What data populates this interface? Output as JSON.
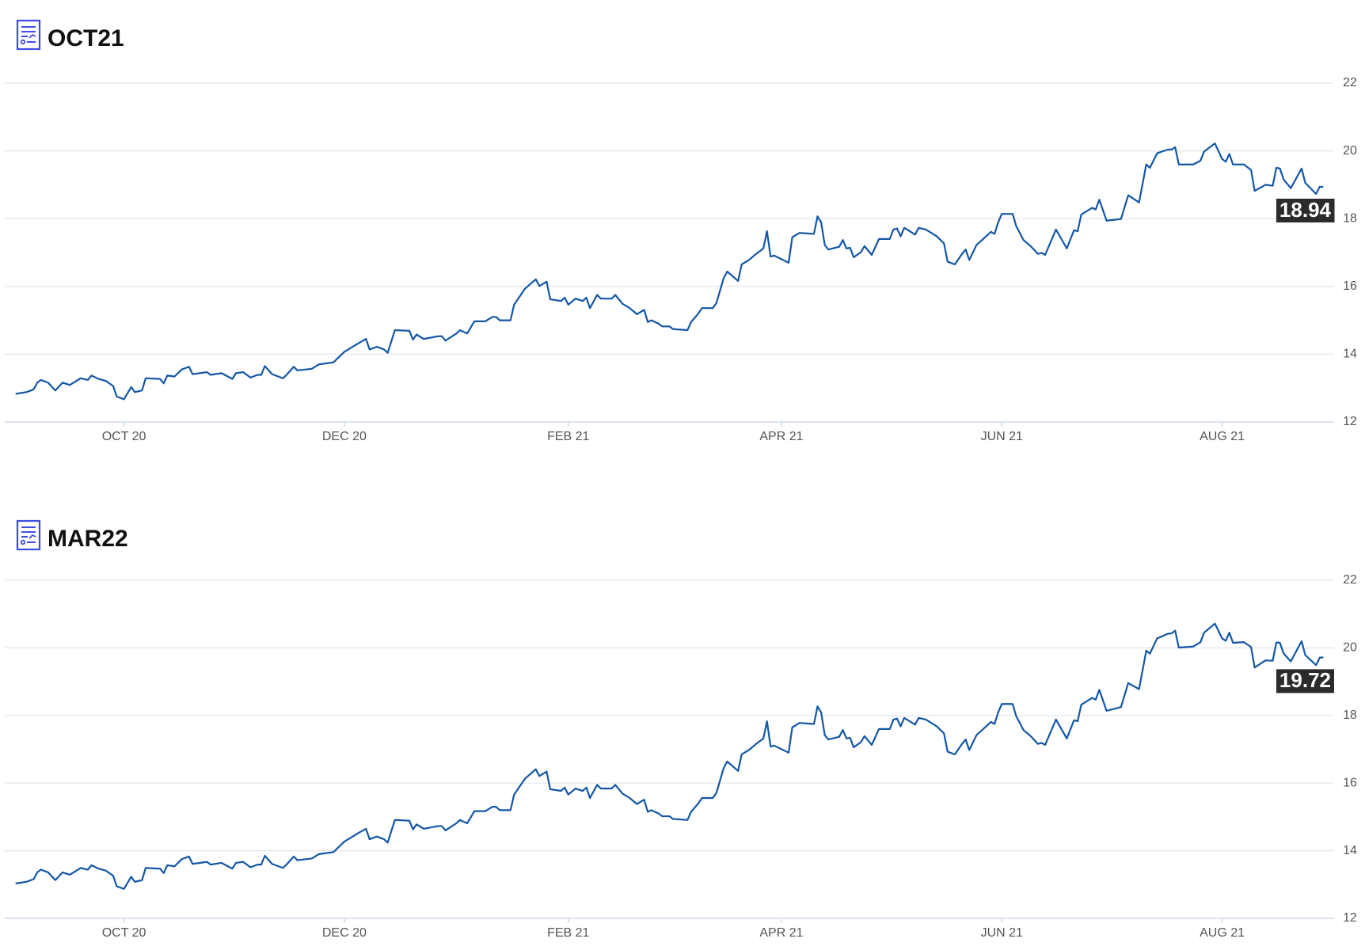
{
  "chart_data": [
    {
      "type": "line",
      "title": "OCT21",
      "color": "#1357a6",
      "grid": true,
      "x": [
        0,
        3,
        5,
        6,
        7,
        9,
        11,
        13,
        15,
        18,
        20,
        21,
        23,
        25,
        27,
        28,
        30,
        32,
        33,
        35,
        36,
        40,
        41,
        42,
        44,
        46,
        48,
        49,
        53,
        54,
        57,
        60,
        61,
        63,
        65,
        67,
        68,
        69,
        71,
        74,
        75,
        77,
        78,
        82,
        84,
        88,
        91,
        95,
        97,
        98,
        100,
        102,
        103,
        105,
        109,
        110,
        111,
        113,
        117,
        118,
        119,
        122,
        123,
        125,
        127,
        130,
        132,
        133,
        134,
        137,
        138,
        141,
        144,
        145,
        147,
        148,
        151,
        152,
        153,
        155,
        157,
        158,
        159,
        161,
        162,
        165,
        166,
        168,
        170,
        172,
        174,
        175,
        176,
        178,
        179,
        181,
        182,
        186,
        187,
        189,
        190,
        193,
        194,
        196,
        197,
        200,
        201,
        203,
        205,
        207,
        208,
        209,
        210,
        214,
        215,
        217,
        221,
        222,
        223,
        224,
        225,
        228,
        229,
        230,
        231,
        232,
        234,
        235,
        237,
        239,
        242,
        243,
        244,
        245,
        246,
        249,
        250,
        252,
        255,
        257,
        258,
        260,
        262,
        263,
        264,
        266,
        270,
        271,
        272,
        273,
        276,
        277,
        279,
        281,
        283,
        284,
        285,
        288,
        291,
        293,
        294,
        295,
        298,
        299,
        300,
        302,
        306,
        308,
        311,
        313,
        314,
        316,
        319,
        320,
        321,
        322,
        326,
        328,
        329,
        332,
        334,
        335,
        336,
        337,
        340,
        342,
        343,
        346,
        348,
        349,
        350,
        351,
        353,
        356,
        357,
        360,
        361,
        362
      ],
      "values": [
        12.83,
        12.88,
        12.96,
        13.16,
        13.24,
        13.16,
        12.93,
        13.16,
        13.09,
        13.29,
        13.24,
        13.37,
        13.27,
        13.21,
        13.06,
        12.75,
        12.67,
        13.03,
        12.88,
        12.93,
        13.29,
        13.27,
        13.14,
        13.37,
        13.34,
        13.55,
        13.63,
        13.41,
        13.47,
        13.39,
        13.44,
        13.27,
        13.44,
        13.47,
        13.31,
        13.39,
        13.39,
        13.65,
        13.41,
        13.29,
        13.39,
        13.63,
        13.52,
        13.57,
        13.7,
        13.76,
        14.07,
        14.33,
        14.45,
        14.14,
        14.22,
        14.14,
        14.04,
        14.71,
        14.69,
        14.43,
        14.58,
        14.45,
        14.53,
        14.53,
        14.4,
        14.61,
        14.71,
        14.61,
        14.97,
        14.97,
        15.1,
        15.1,
        15.0,
        15.0,
        15.46,
        15.93,
        16.21,
        16.01,
        16.14,
        15.62,
        15.57,
        15.67,
        15.46,
        15.64,
        15.57,
        15.67,
        15.36,
        15.75,
        15.64,
        15.64,
        15.75,
        15.49,
        15.36,
        15.18,
        15.31,
        14.95,
        15.0,
        14.9,
        14.82,
        14.82,
        14.74,
        14.71,
        14.95,
        15.2,
        15.36,
        15.36,
        15.51,
        16.24,
        16.44,
        16.16,
        16.65,
        16.78,
        16.96,
        17.12,
        17.63,
        16.88,
        16.91,
        16.7,
        17.45,
        17.58,
        17.55,
        18.07,
        17.89,
        17.22,
        17.09,
        17.17,
        17.37,
        17.12,
        17.14,
        16.86,
        17.01,
        17.19,
        16.93,
        17.4,
        17.4,
        17.68,
        17.71,
        17.48,
        17.73,
        17.53,
        17.73,
        17.68,
        17.48,
        17.27,
        16.73,
        16.65,
        16.96,
        17.09,
        16.78,
        17.22,
        17.61,
        17.55,
        17.89,
        18.14,
        18.14,
        17.78,
        17.37,
        17.19,
        16.96,
        16.99,
        16.93,
        17.68,
        17.12,
        17.66,
        17.63,
        18.12,
        18.32,
        18.27,
        18.56,
        17.94,
        17.99,
        18.69,
        18.48,
        19.6,
        19.5,
        19.93,
        20.04,
        20.04,
        20.11,
        19.6,
        19.6,
        19.71,
        19.98,
        20.22,
        19.76,
        19.68,
        19.91,
        19.6,
        19.6,
        19.44,
        18.82,
        19.0,
        18.97,
        19.5,
        19.48,
        19.16,
        18.9,
        19.48,
        19.06,
        18.73,
        18.94,
        18.94
      ],
      "xlim": [
        -3,
        365
      ],
      "xticks": [
        {
          "value": 30,
          "label": "OCT 20"
        },
        {
          "value": 91,
          "label": "DEC 20"
        },
        {
          "value": 153,
          "label": "FEB 21"
        },
        {
          "value": 212,
          "label": "APR 21"
        },
        {
          "value": 273,
          "label": "JUN 21"
        },
        {
          "value": 334,
          "label": "AUG 21"
        }
      ],
      "ylim": [
        12,
        22
      ],
      "yticks": [
        12,
        14,
        16,
        18,
        20,
        22
      ]
    },
    {
      "type": "line",
      "title": "MAR22",
      "color": "#1357a6",
      "grid": true,
      "x": [
        0,
        3,
        5,
        6,
        7,
        9,
        11,
        13,
        15,
        18,
        20,
        21,
        23,
        25,
        27,
        28,
        30,
        32,
        33,
        35,
        36,
        40,
        41,
        42,
        44,
        46,
        48,
        49,
        53,
        54,
        57,
        60,
        61,
        63,
        65,
        67,
        68,
        69,
        71,
        74,
        75,
        77,
        78,
        82,
        84,
        88,
        91,
        95,
        97,
        98,
        100,
        102,
        103,
        105,
        109,
        110,
        111,
        113,
        117,
        118,
        119,
        122,
        123,
        125,
        127,
        130,
        132,
        133,
        134,
        137,
        138,
        141,
        144,
        145,
        147,
        148,
        151,
        152,
        153,
        155,
        157,
        158,
        159,
        161,
        162,
        165,
        166,
        168,
        170,
        172,
        174,
        175,
        176,
        178,
        179,
        181,
        182,
        186,
        187,
        189,
        190,
        193,
        194,
        196,
        197,
        200,
        201,
        203,
        205,
        207,
        208,
        209,
        210,
        214,
        215,
        217,
        221,
        222,
        223,
        224,
        225,
        228,
        229,
        230,
        231,
        232,
        234,
        235,
        237,
        239,
        242,
        243,
        244,
        245,
        246,
        249,
        250,
        252,
        255,
        257,
        258,
        260,
        262,
        263,
        264,
        266,
        270,
        271,
        272,
        273,
        276,
        277,
        279,
        281,
        283,
        284,
        285,
        288,
        291,
        293,
        294,
        295,
        298,
        299,
        300,
        302,
        306,
        308,
        311,
        313,
        314,
        316,
        319,
        320,
        321,
        322,
        326,
        328,
        329,
        332,
        334,
        335,
        336,
        337,
        340,
        342,
        343,
        346,
        348,
        349,
        350,
        351,
        353,
        356,
        357,
        360,
        361,
        362
      ],
      "values": [
        13.03,
        13.08,
        13.16,
        13.36,
        13.44,
        13.36,
        13.13,
        13.36,
        13.29,
        13.49,
        13.44,
        13.57,
        13.47,
        13.41,
        13.26,
        12.95,
        12.87,
        13.23,
        13.08,
        13.13,
        13.49,
        13.47,
        13.34,
        13.57,
        13.54,
        13.75,
        13.83,
        13.61,
        13.67,
        13.59,
        13.64,
        13.47,
        13.64,
        13.67,
        13.51,
        13.59,
        13.59,
        13.85,
        13.61,
        13.49,
        13.59,
        13.83,
        13.72,
        13.77,
        13.9,
        13.96,
        14.27,
        14.53,
        14.65,
        14.34,
        14.42,
        14.34,
        14.24,
        14.91,
        14.89,
        14.63,
        14.78,
        14.65,
        14.73,
        14.73,
        14.6,
        14.81,
        14.91,
        14.81,
        15.17,
        15.17,
        15.3,
        15.3,
        15.2,
        15.2,
        15.66,
        16.13,
        16.41,
        16.21,
        16.34,
        15.82,
        15.77,
        15.87,
        15.66,
        15.84,
        15.77,
        15.87,
        15.56,
        15.95,
        15.84,
        15.84,
        15.95,
        15.69,
        15.56,
        15.38,
        15.51,
        15.15,
        15.2,
        15.1,
        15.02,
        15.02,
        14.94,
        14.91,
        15.15,
        15.4,
        15.56,
        15.56,
        15.71,
        16.44,
        16.64,
        16.36,
        16.85,
        16.98,
        17.16,
        17.32,
        17.83,
        17.08,
        17.11,
        16.9,
        17.65,
        17.78,
        17.75,
        18.27,
        18.09,
        17.42,
        17.29,
        17.37,
        17.57,
        17.32,
        17.34,
        17.06,
        17.21,
        17.39,
        17.13,
        17.6,
        17.6,
        17.88,
        17.91,
        17.68,
        17.93,
        17.73,
        17.93,
        17.88,
        17.68,
        17.47,
        16.93,
        16.85,
        17.16,
        17.29,
        16.98,
        17.42,
        17.81,
        17.75,
        18.09,
        18.34,
        18.34,
        17.98,
        17.57,
        17.39,
        17.16,
        17.19,
        17.13,
        17.88,
        17.32,
        17.86,
        17.83,
        18.32,
        18.52,
        18.47,
        18.76,
        18.14,
        18.25,
        18.96,
        18.78,
        19.92,
        19.83,
        20.28,
        20.42,
        20.43,
        20.51,
        20.01,
        20.04,
        20.17,
        20.45,
        20.72,
        20.28,
        20.21,
        20.45,
        20.15,
        20.17,
        20.03,
        19.42,
        19.63,
        19.62,
        20.16,
        20.15,
        19.84,
        19.6,
        20.2,
        19.79,
        19.49,
        19.71,
        19.72
      ],
      "xlim": [
        -3,
        365
      ],
      "xticks": [
        {
          "value": 30,
          "label": "OCT 20"
        },
        {
          "value": 91,
          "label": "DEC 20"
        },
        {
          "value": 153,
          "label": "FEB 21"
        },
        {
          "value": 212,
          "label": "APR 21"
        },
        {
          "value": 273,
          "label": "JUN 21"
        },
        {
          "value": 334,
          "label": "AUG 21"
        }
      ],
      "ylim": [
        12,
        22
      ],
      "yticks": [
        12,
        14,
        16,
        18,
        20,
        22
      ]
    }
  ]
}
